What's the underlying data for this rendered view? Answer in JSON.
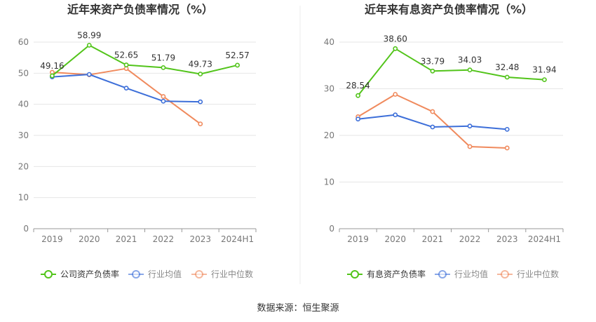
{
  "source_note": "数据来源：恒生聚源",
  "colors": {
    "main": "#52c41a",
    "avg": "#3d6fd9",
    "median": "#f08a5d",
    "axis": "#999999",
    "grid": "#e6e6e6",
    "text": "#333333",
    "tick": "#777777"
  },
  "chart_data": [
    {
      "type": "line",
      "title": "近年来资产负债率情况（%）",
      "categories": [
        "2019",
        "2020",
        "2021",
        "2022",
        "2023",
        "2024H1"
      ],
      "ylim": [
        0,
        60
      ],
      "yticks": [
        0,
        10,
        20,
        30,
        40,
        50,
        60
      ],
      "series": [
        {
          "name": "公司资产负债率",
          "key": "main",
          "values": [
            49.16,
            58.99,
            52.65,
            51.79,
            49.73,
            52.57
          ],
          "labels": [
            "49.16",
            "58.99",
            "52.65",
            "51.79",
            "49.73",
            "52.57"
          ]
        },
        {
          "name": "行业均值",
          "key": "avg",
          "values": [
            48.8,
            49.6,
            45.2,
            41.0,
            40.8,
            null
          ]
        },
        {
          "name": "行业中位数",
          "key": "median",
          "values": [
            50.3,
            49.5,
            51.5,
            42.5,
            33.7,
            null
          ]
        }
      ],
      "legend": "bottom"
    },
    {
      "type": "line",
      "title": "近年来有息资产负债率情况（%）",
      "categories": [
        "2019",
        "2020",
        "2021",
        "2022",
        "2023",
        "2024H1"
      ],
      "ylim": [
        0,
        40
      ],
      "yticks": [
        0,
        10,
        20,
        30,
        40
      ],
      "series": [
        {
          "name": "有息资产负债率",
          "key": "main",
          "values": [
            28.54,
            38.6,
            33.79,
            34.03,
            32.48,
            31.94
          ],
          "labels": [
            "28.54",
            "38.60",
            "33.79",
            "34.03",
            "32.48",
            "31.94"
          ]
        },
        {
          "name": "行业均值",
          "key": "avg",
          "values": [
            23.5,
            24.4,
            21.8,
            22.0,
            21.3,
            null
          ]
        },
        {
          "name": "行业中位数",
          "key": "median",
          "values": [
            24.0,
            28.8,
            25.1,
            17.6,
            17.3,
            null
          ]
        }
      ],
      "legend": "bottom"
    }
  ]
}
